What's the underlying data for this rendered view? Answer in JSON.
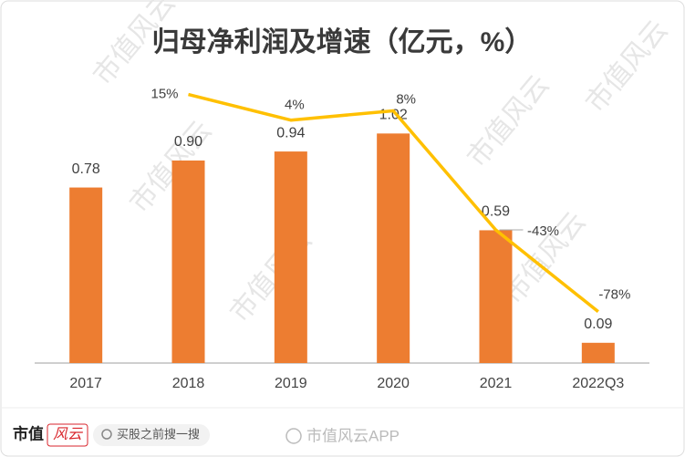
{
  "chart_data": {
    "type": "bar_line",
    "title": "归母净利润及增速（亿元，%）",
    "categories": [
      "2017",
      "2018",
      "2019",
      "2020",
      "2021",
      "2022Q3"
    ],
    "series": [
      {
        "name": "归母净利润",
        "color": "#ed7d31",
        "values": [
          0.78,
          0.9,
          0.94,
          1.02,
          0.59,
          0.09
        ],
        "value_labels": [
          "0.78",
          "0.90",
          "0.94",
          "1.02",
          "0.59",
          "0.09"
        ]
      },
      {
        "name": "增速",
        "color": "#ffc000",
        "axis": "y2",
        "values": [
          null,
          15,
          4,
          8,
          -43,
          -78
        ],
        "value_labels": [
          null,
          "15%",
          "4%",
          "8%",
          "-43%",
          "-78%"
        ]
      }
    ],
    "ylim": [
      0,
      1.37
    ],
    "y2lim": [
      -100,
      32
    ]
  },
  "watermark": "市值风云",
  "footer": {
    "brand": "市值",
    "brand_mark": "风云",
    "search": "买股之前搜一搜",
    "account": "市值风云APP"
  }
}
